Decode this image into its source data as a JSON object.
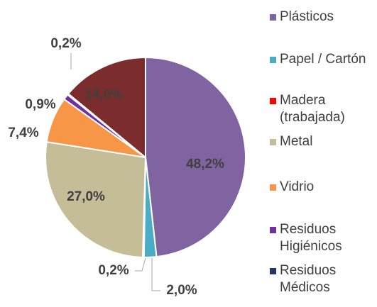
{
  "chart_data": {
    "type": "pie",
    "categories": [
      "Plásticos",
      "Papel / Cartón",
      "Madera (trabajada)",
      "Metal",
      "Vidrio",
      "Residuos Higiénicos",
      "Residuos Médicos",
      null
    ],
    "values": [
      48.2,
      2.0,
      0.2,
      27.0,
      7.4,
      0.9,
      0.2,
      14.0
    ],
    "value_labels": [
      "48,2%",
      "2,0%",
      "0,2%",
      "27,0%",
      "7,4%",
      "0,9%",
      "0,2%",
      "14,0%"
    ],
    "colors": [
      "#8064a2",
      "#4bacc6",
      "#ff0000",
      "#c4bd97",
      "#f79646",
      "#7030a0",
      "#1f3864",
      "#7b2c2c"
    ],
    "legend": "right"
  }
}
